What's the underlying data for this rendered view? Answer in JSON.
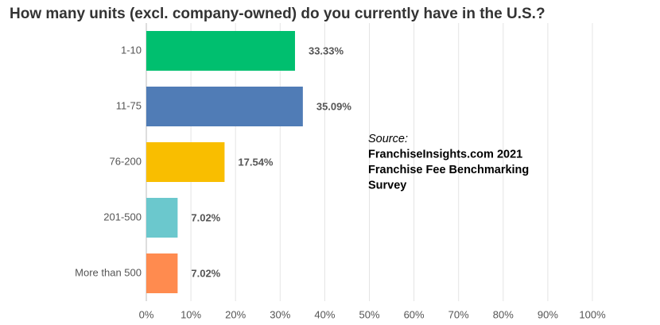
{
  "chart_data": {
    "type": "bar",
    "orientation": "horizontal",
    "title": "How many units (excl. company-owned) do you currently have in the U.S.?",
    "categories": [
      "1-10",
      "11-75",
      "76-200",
      "201-500",
      "More than 500"
    ],
    "values": [
      33.33,
      35.09,
      17.54,
      7.02,
      7.02
    ],
    "value_labels": [
      "33.33%",
      "35.09%",
      "17.54%",
      "7.02%",
      "7.02%"
    ],
    "colors": [
      "#00bf6f",
      "#507cb6",
      "#f9be00",
      "#6bc8cd",
      "#ff8b4f"
    ],
    "xlim": [
      0,
      100
    ],
    "xticks": [
      {
        "value": 0,
        "label": "0%"
      },
      {
        "value": 10,
        "label": "10%"
      },
      {
        "value": 20,
        "label": "20%"
      },
      {
        "value": 30,
        "label": "30%"
      },
      {
        "value": 40,
        "label": "40%"
      },
      {
        "value": 50,
        "label": "50%"
      },
      {
        "value": 60,
        "label": "60%"
      },
      {
        "value": 70,
        "label": "70%"
      },
      {
        "value": 80,
        "label": "80%"
      },
      {
        "value": 90,
        "label": "90%"
      },
      {
        "value": 100,
        "label": "100%"
      }
    ],
    "grid": true,
    "annotations": [
      "Source:",
      "FranchiseInsights.com 2021",
      "Franchise Fee Benchmarking",
      "Survey"
    ]
  }
}
